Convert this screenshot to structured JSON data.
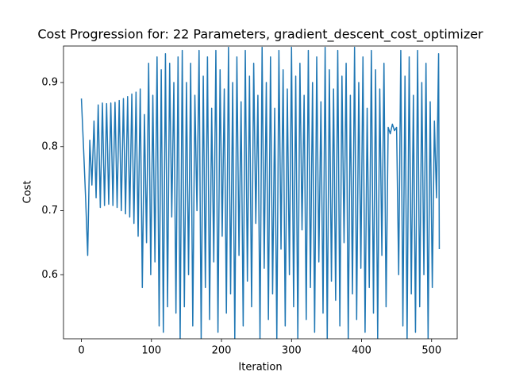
{
  "chart_data": {
    "type": "line",
    "title": "Cost Progression for: 22 Parameters, gradient_descent_cost_optimizer",
    "x_label": "Iteration",
    "y_label": "Cost",
    "x": [
      0,
      3,
      6,
      9,
      12,
      15,
      18,
      21,
      24,
      27,
      30,
      33,
      36,
      39,
      42,
      45,
      48,
      51,
      54,
      57,
      60,
      63,
      66,
      69,
      72,
      75,
      78,
      81,
      84,
      87,
      90,
      93,
      96,
      99,
      102,
      105,
      108,
      111,
      114,
      117,
      120,
      123,
      126,
      129,
      132,
      135,
      138,
      141,
      144,
      147,
      150,
      153,
      156,
      159,
      162,
      165,
      168,
      171,
      174,
      177,
      180,
      183,
      186,
      189,
      192,
      195,
      198,
      201,
      204,
      207,
      210,
      213,
      216,
      219,
      222,
      225,
      228,
      231,
      234,
      237,
      240,
      243,
      246,
      249,
      252,
      255,
      258,
      261,
      264,
      267,
      270,
      273,
      276,
      279,
      282,
      285,
      288,
      291,
      294,
      297,
      300,
      303,
      306,
      309,
      312,
      315,
      318,
      321,
      324,
      327,
      330,
      333,
      336,
      339,
      342,
      345,
      348,
      351,
      354,
      357,
      360,
      363,
      366,
      369,
      372,
      375,
      378,
      381,
      384,
      387,
      390,
      393,
      396,
      399,
      402,
      405,
      408,
      411,
      414,
      417,
      420,
      423,
      426,
      429,
      432,
      435,
      438,
      441,
      444,
      447,
      450,
      453,
      456,
      459,
      462,
      465,
      468,
      471,
      474,
      477,
      480,
      483,
      486,
      489,
      492,
      495,
      498,
      501,
      504,
      507,
      510,
      511
    ],
    "series": [
      {
        "name": "Cost",
        "color": "#1f77b4",
        "values": [
          0.875,
          0.8,
          0.72,
          0.63,
          0.81,
          0.74,
          0.84,
          0.72,
          0.865,
          0.705,
          0.868,
          0.708,
          0.867,
          0.71,
          0.868,
          0.708,
          0.869,
          0.705,
          0.872,
          0.7,
          0.875,
          0.695,
          0.878,
          0.69,
          0.882,
          0.68,
          0.885,
          0.66,
          0.89,
          0.58,
          0.85,
          0.65,
          0.93,
          0.6,
          0.88,
          0.62,
          0.94,
          0.52,
          0.92,
          0.51,
          0.945,
          0.55,
          0.93,
          0.69,
          0.9,
          0.54,
          0.94,
          0.5,
          0.95,
          0.55,
          0.9,
          0.6,
          0.93,
          0.52,
          0.88,
          0.7,
          0.95,
          0.5,
          0.91,
          0.58,
          0.94,
          0.53,
          0.86,
          0.62,
          0.95,
          0.51,
          0.92,
          0.66,
          0.89,
          0.54,
          0.955,
          0.57,
          0.9,
          0.5,
          0.94,
          0.63,
          0.87,
          0.52,
          0.95,
          0.59,
          0.91,
          0.55,
          0.93,
          0.68,
          0.88,
          0.5,
          0.955,
          0.61,
          0.9,
          0.53,
          0.94,
          0.57,
          0.86,
          0.5,
          0.95,
          0.64,
          0.92,
          0.52,
          0.89,
          0.6,
          0.955,
          0.55,
          0.91,
          0.5,
          0.93,
          0.67,
          0.88,
          0.53,
          0.95,
          0.58,
          0.9,
          0.51,
          0.94,
          0.62,
          0.87,
          0.54,
          0.955,
          0.5,
          0.92,
          0.59,
          0.89,
          0.56,
          0.95,
          0.52,
          0.91,
          0.65,
          0.93,
          0.5,
          0.88,
          0.57,
          0.955,
          0.53,
          0.9,
          0.61,
          0.94,
          0.51,
          0.86,
          0.58,
          0.95,
          0.54,
          0.92,
          0.5,
          0.89,
          0.63,
          0.93,
          0.55,
          0.83,
          0.82,
          0.835,
          0.825,
          0.83,
          0.6,
          0.95,
          0.52,
          0.91,
          0.5,
          0.94,
          0.57,
          0.88,
          0.51,
          0.95,
          0.55,
          0.9,
          0.6,
          0.93,
          0.5,
          0.87,
          0.58,
          0.84,
          0.72,
          0.945,
          0.64
        ]
      }
    ],
    "xlim": [
      -25.55,
      536.55
    ],
    "ylim": [
      0.5,
      0.957
    ],
    "xticks": [
      0,
      100,
      200,
      300,
      400,
      500
    ],
    "yticks": [
      0.6,
      0.7,
      0.8,
      0.9
    ]
  }
}
